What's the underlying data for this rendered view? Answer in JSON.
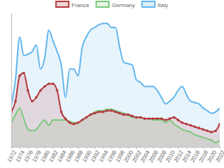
{
  "chart_data": {
    "type": "line",
    "x": [
      1972,
      1973,
      1974,
      1975,
      1976,
      1977,
      1978,
      1979,
      1980,
      1981,
      1982,
      1983,
      1984,
      1985,
      1986,
      1987,
      1988,
      1989,
      1990,
      1991,
      1992,
      1993,
      1994,
      1995,
      1996,
      1997,
      1998,
      1999,
      2000,
      2001,
      2002,
      2003,
      2004,
      2005,
      2006,
      2007,
      2008,
      2009,
      2010,
      2011,
      2012,
      2013,
      2014,
      2015,
      2016,
      2017,
      2018,
      2019,
      2020,
      2021,
      2022
    ],
    "series": [
      {
        "name": "France",
        "color": "#b5383d",
        "marker": "circle",
        "values": [
          2.6,
          3.4,
          5.3,
          5.5,
          4.2,
          3.4,
          3.7,
          4.2,
          4.5,
          4.7,
          4.7,
          4.2,
          2.6,
          2.1,
          1.8,
          1.7,
          1.8,
          2.0,
          2.2,
          2.4,
          2.5,
          2.6,
          2.6,
          2.7,
          2.7,
          2.6,
          2.5,
          2.4,
          2.4,
          2.3,
          2.2,
          2.2,
          2.1,
          2.1,
          2.1,
          2.1,
          2.1,
          2.0,
          2.1,
          2.2,
          2.0,
          1.8,
          1.7,
          1.6,
          1.5,
          1.4,
          1.3,
          1.2,
          1.1,
          1.2,
          1.7
        ]
      },
      {
        "name": "Germany",
        "color": "#7cc87c",
        "marker": "none",
        "values": [
          1.8,
          2.4,
          2.9,
          2.1,
          1.3,
          1.2,
          1.3,
          1.7,
          2.0,
          1.6,
          2.0,
          2.0,
          2.0,
          2.0,
          1.9,
          1.8,
          1.8,
          2.0,
          2.2,
          2.4,
          2.6,
          2.7,
          2.7,
          2.8,
          2.8,
          2.7,
          2.6,
          2.5,
          2.4,
          2.2,
          2.2,
          2.2,
          2.1,
          2.1,
          2.0,
          2.0,
          2.0,
          1.8,
          2.0,
          1.7,
          1.5,
          1.3,
          1.2,
          1.1,
          0.9,
          0.8,
          0.7,
          0.6,
          0.5,
          0.3,
          0.5
        ]
      },
      {
        "name": "Italy",
        "color": "#62b6ee",
        "marker": "none",
        "values": [
          3.1,
          5.0,
          8.2,
          6.8,
          6.9,
          7.1,
          7.6,
          5.8,
          6.6,
          8.7,
          7.9,
          7.1,
          6.1,
          3.7,
          5.8,
          5.8,
          5.3,
          7.4,
          8.2,
          8.7,
          8.9,
          9.1,
          9.2,
          9.2,
          8.9,
          8.9,
          7.4,
          6.3,
          6.2,
          6.1,
          5.0,
          4.8,
          4.5,
          4.5,
          4.5,
          4.2,
          3.7,
          3.2,
          3.4,
          3.7,
          4.2,
          4.5,
          3.9,
          3.4,
          3.3,
          3.2,
          2.9,
          2.7,
          2.5,
          2.6,
          2.9
        ]
      }
    ],
    "xlim": [
      1972,
      2022
    ],
    "xticks": [
      1972,
      1974,
      1976,
      1978,
      1980,
      1982,
      1984,
      1986,
      1988,
      1990,
      1992,
      1994,
      1996,
      1998,
      2000,
      2002,
      2004,
      2006,
      2008,
      2010,
      2012,
      2014,
      2016,
      2018,
      2020,
      2022
    ],
    "ylim": [
      0,
      10
    ],
    "tick_labels": "x",
    "grid": false,
    "legend": "top"
  }
}
